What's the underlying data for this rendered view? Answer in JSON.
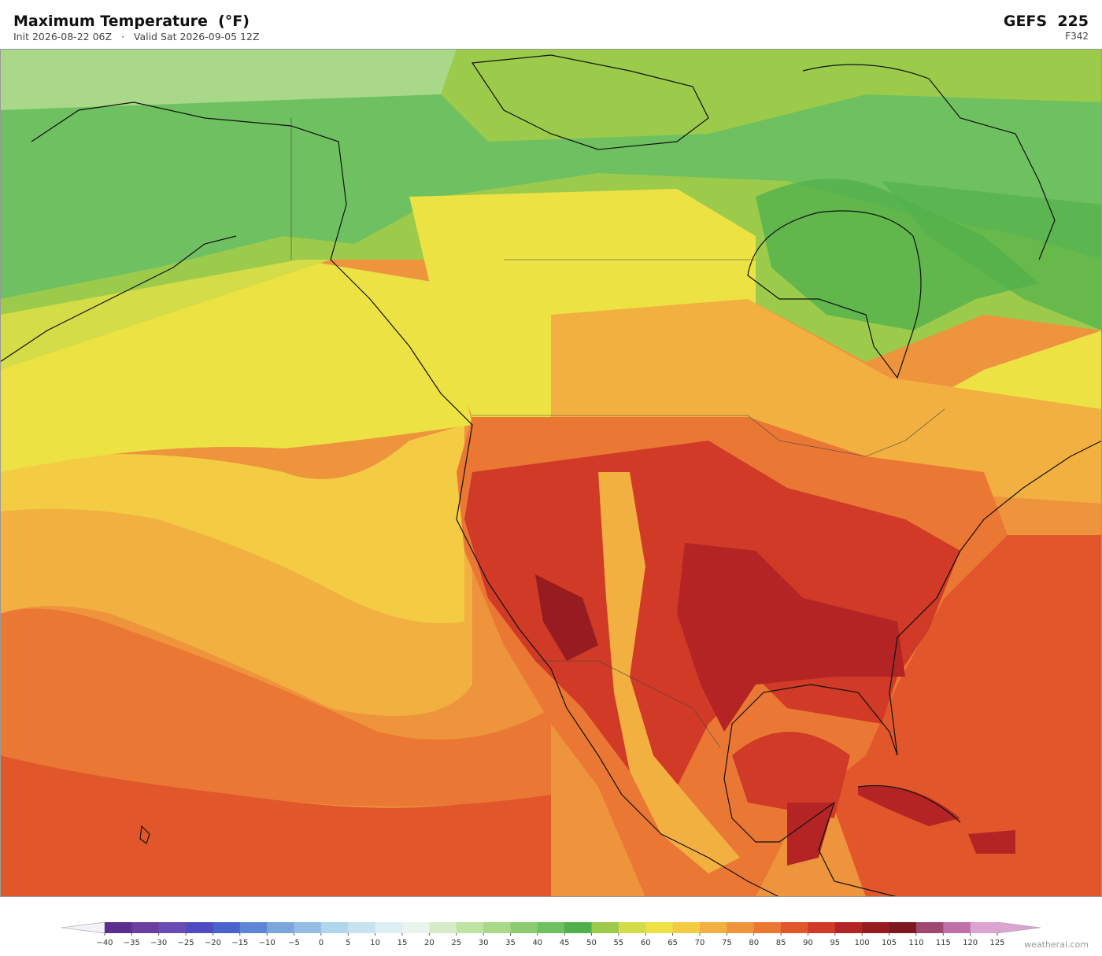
{
  "header": {
    "title": "Maximum Temperature  (°F)",
    "init": "Init 2026-08-22 06Z",
    "separator": "·",
    "valid": "Valid Sat 2026-09-05 12Z",
    "model": "GEFS  225",
    "forecast_hour": "F342"
  },
  "colorbar": {
    "ticks": [
      {
        "value": -40,
        "label": "−40"
      },
      {
        "value": -35,
        "label": "−35"
      },
      {
        "value": -30,
        "label": "−30"
      },
      {
        "value": -25,
        "label": "−25"
      },
      {
        "value": -20,
        "label": "−20"
      },
      {
        "value": -15,
        "label": "−15"
      },
      {
        "value": -10,
        "label": "−10"
      },
      {
        "value": -5,
        "label": "−5"
      },
      0,
      5,
      10,
      15,
      20,
      25,
      30,
      35,
      40,
      45,
      50,
      55,
      60,
      65,
      70,
      75,
      80,
      85,
      90,
      95,
      100,
      105,
      110,
      115,
      120,
      125
    ],
    "colors": [
      "#5b2d8e",
      "#6a3fa0",
      "#6a4cb4",
      "#4e4cc0",
      "#4a62cc",
      "#5f86d4",
      "#7aa6dc",
      "#93bde4",
      "#b0d6ec",
      "#c8e3f0",
      "#dceff4",
      "#e8f4ec",
      "#d6ecc8",
      "#bfe3a0",
      "#a8d888",
      "#8ccc70",
      "#6ec060",
      "#52b04c",
      "#9ccb4c",
      "#d4dc48",
      "#ece244",
      "#f4cc44",
      "#f2b040",
      "#ee943c",
      "#ea7834",
      "#e2562c",
      "#d03a26",
      "#b42424",
      "#961c22",
      "#7e1820",
      "#a04870",
      "#c070a8",
      "#dca4d0"
    ],
    "under_color": "#f4f2f8",
    "over_color": "#dca4d0"
  },
  "watermark": "weatherai.com"
}
